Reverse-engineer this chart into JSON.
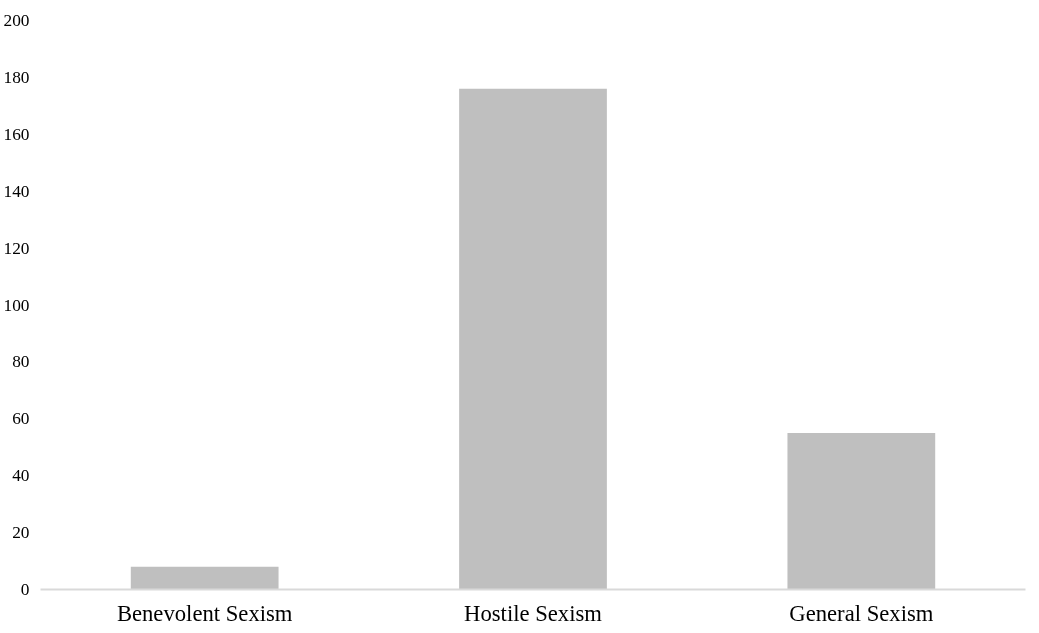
{
  "chart_data": {
    "type": "bar",
    "categories": [
      "Benevolent Sexism",
      "Hostile Sexism",
      "General Sexism"
    ],
    "values": [
      8,
      176,
      55
    ],
    "color": "#bfbfbf",
    "ylim": [
      0,
      200
    ],
    "yticks": [
      0,
      20,
      40,
      60,
      80,
      100,
      120,
      140,
      160,
      180,
      200
    ],
    "grid": false
  }
}
